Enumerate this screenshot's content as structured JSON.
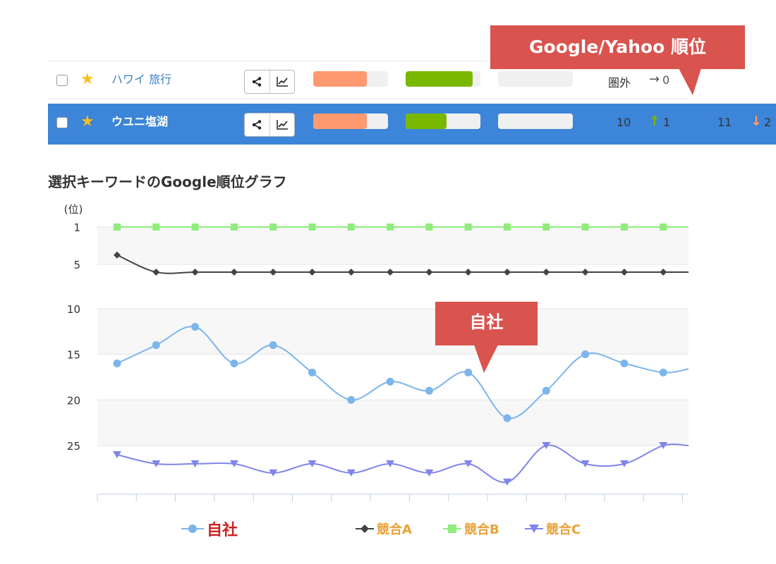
{
  "rows": [
    {
      "keyword": "ハワイ 旅行",
      "starred": true,
      "selected": false,
      "bars": [
        0.72,
        0.9,
        0.0
      ],
      "google_rank": "圏外",
      "google_change": "0",
      "google_arrow": "→",
      "yahoo_rank": "",
      "yahoo_change": ""
    },
    {
      "keyword": "ウユニ塩湖",
      "starred": true,
      "selected": true,
      "bars": [
        0.72,
        0.55,
        0.0
      ],
      "google_rank": "10",
      "google_change": "1",
      "google_arrow": "↑",
      "yahoo_rank": "11",
      "yahoo_change": "2",
      "yahoo_arrow": "↓"
    }
  ],
  "callouts": {
    "rank_header": "Google/Yahoo 順位",
    "own_company": "自社"
  },
  "chart_title": "選択キーワードのGoogle順位グラフ",
  "colors": {
    "selected_row": "#3c85d8",
    "bar1": "#ff9a70",
    "bar2": "#7ab800",
    "callout": "#d9534f",
    "series_own": "#7cb5ec",
    "series_a": "#434348",
    "series_b": "#90ed7d",
    "series_c": "#8085e9",
    "legend_own_text": "#cc2222",
    "legend_comp_text": "#e8a23a"
  },
  "chart_data": {
    "type": "line",
    "ylabel": "(位)",
    "y_ticks": [
      1,
      5,
      10,
      15,
      20,
      25
    ],
    "y_reversed": true,
    "ylim": [
      1,
      29
    ],
    "x_count": 16,
    "series": [
      {
        "name": "自社",
        "marker": "circle",
        "values": [
          16,
          14,
          12,
          16,
          14,
          17,
          20,
          18,
          19,
          17,
          22,
          19,
          15,
          16,
          17,
          16.6
        ]
      },
      {
        "name": "競合A",
        "marker": "diamond",
        "values": [
          4,
          6,
          6,
          6,
          6,
          6,
          6,
          6,
          6,
          6,
          6,
          6,
          6,
          6,
          6,
          6
        ]
      },
      {
        "name": "競合B",
        "marker": "square",
        "values": [
          1,
          1,
          1,
          1,
          1,
          1,
          1,
          1,
          1,
          1,
          1,
          1,
          1,
          1,
          1,
          1
        ]
      },
      {
        "name": "競合C",
        "marker": "triangle-down",
        "values": [
          26,
          27,
          27,
          27,
          28,
          27,
          28,
          27,
          28,
          27,
          29,
          25,
          27,
          27,
          25,
          25
        ]
      }
    ]
  }
}
